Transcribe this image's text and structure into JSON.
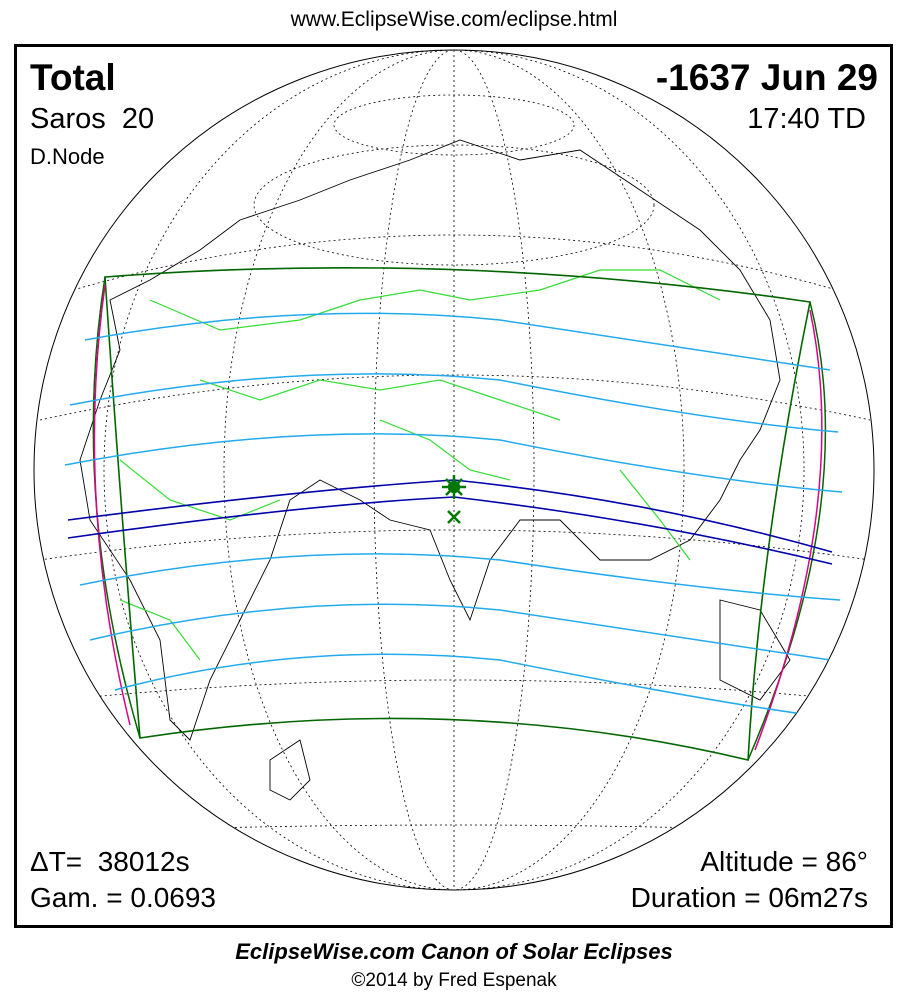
{
  "header": {
    "url": "www.EclipseWise.com/eclipse.html"
  },
  "panel": {
    "eclipse_type": "Total",
    "date": "-1637 Jun 29",
    "saros": "Saros  20",
    "time": "17:40 TD",
    "node": "D.Node",
    "delta_t": "ΔT=  38012s",
    "gamma": "Gam. = 0.0693",
    "altitude": "Altitude = 86°",
    "duration": "Duration = 06m27s"
  },
  "footer": {
    "title": "EclipseWise.com Canon of Solar Eclipses",
    "credit": "©2014 by Fred Espenak"
  }
}
